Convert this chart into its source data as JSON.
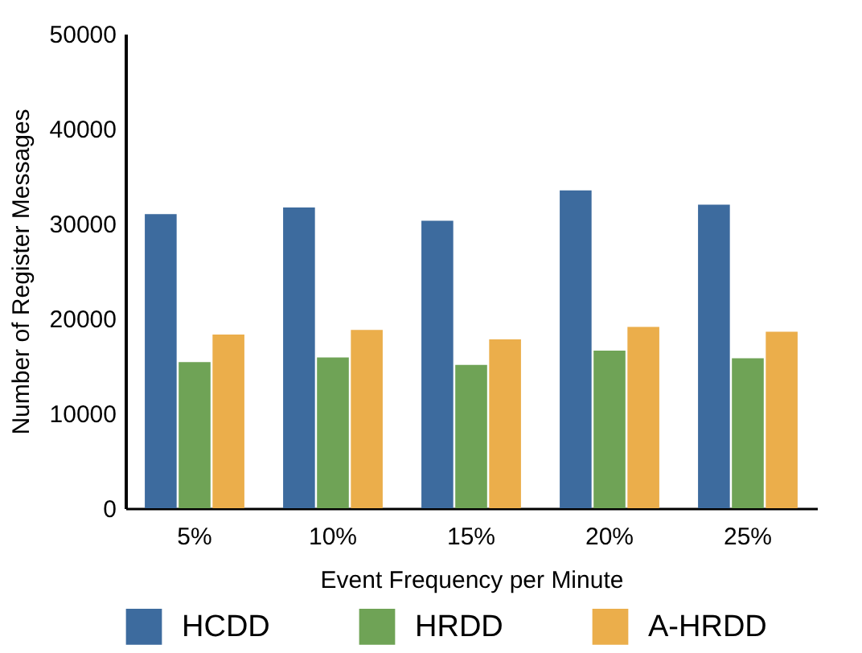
{
  "chart_data": {
    "type": "bar",
    "xlabel": "Event Frequency per Minute",
    "ylabel": "Number of Register Messages",
    "categories": [
      "5%",
      "10%",
      "15%",
      "20%",
      "25%"
    ],
    "series": [
      {
        "name": "HCDD",
        "color": "#3d6b9e",
        "values": [
          31000,
          31700,
          30300,
          33500,
          32000
        ]
      },
      {
        "name": "HRDD",
        "color": "#6fa356",
        "values": [
          15400,
          15900,
          15100,
          16600,
          15800
        ]
      },
      {
        "name": "A-HRDD",
        "color": "#ebae4b",
        "values": [
          18300,
          18800,
          17800,
          19100,
          18600
        ]
      }
    ],
    "ylim": [
      0,
      50000
    ],
    "yticks": [
      0,
      10000,
      20000,
      30000,
      40000,
      50000
    ],
    "grid": false,
    "legend": "bottom"
  }
}
